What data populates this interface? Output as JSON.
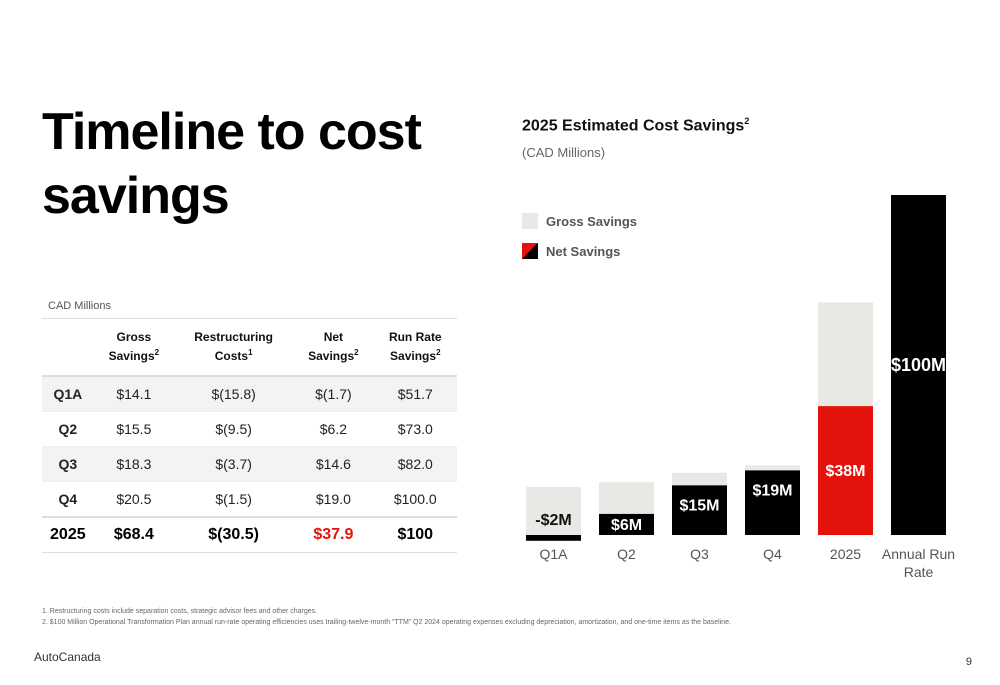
{
  "title_line1": "Timeline to cost",
  "title_line2": "savings",
  "table": {
    "units": "CAD Millions",
    "headers": [
      {
        "line1": "",
        "line2": "",
        "sup": ""
      },
      {
        "line1": "Gross",
        "line2": "Savings",
        "sup": "2"
      },
      {
        "line1": "Restructuring",
        "line2": "Costs",
        "sup": "1"
      },
      {
        "line1": "Net",
        "line2": "Savings",
        "sup": "2"
      },
      {
        "line1": "Run Rate",
        "line2": "Savings",
        "sup": "2"
      }
    ],
    "rows": [
      {
        "label": "Q1A",
        "gross": "$14.1",
        "restructuring": "$(15.8)",
        "net": "$(1.7)",
        "runrate": "$51.7"
      },
      {
        "label": "Q2",
        "gross": "$15.5",
        "restructuring": "$(9.5)",
        "net": "$6.2",
        "runrate": "$73.0"
      },
      {
        "label": "Q3",
        "gross": "$18.3",
        "restructuring": "$(3.7)",
        "net": "$14.6",
        "runrate": "$82.0"
      },
      {
        "label": "Q4",
        "gross": "$20.5",
        "restructuring": "$(1.5)",
        "net": "$19.0",
        "runrate": "$100.0"
      }
    ],
    "total": {
      "label": "2025",
      "gross": "$68.4",
      "restructuring": "$(30.5)",
      "net": "$37.9",
      "runrate": "$100"
    }
  },
  "chart_title": "2025 Estimated Cost Savings",
  "chart_title_sup": "2",
  "chart_subtitle": "(CAD Millions)",
  "legend": {
    "gross": "Gross Savings",
    "net": "Net Savings"
  },
  "chart_data": {
    "type": "bar",
    "categories": [
      "Q1A",
      "Q2",
      "Q3",
      "Q4",
      "2025",
      "Annual Run Rate"
    ],
    "series": [
      {
        "name": "Gross Savings",
        "values": [
          14.1,
          15.5,
          18.3,
          20.5,
          68.4,
          null
        ]
      },
      {
        "name": "Net Savings",
        "values": [
          -1.7,
          6.2,
          14.6,
          19.0,
          37.9,
          100
        ]
      }
    ],
    "data_labels": [
      "-$2M",
      "$6M",
      "$15M",
      "$19M",
      "$38M",
      "$100M"
    ],
    "ylim": [
      -2,
      100
    ],
    "colors": {
      "gross": "#e9e8e4",
      "net": "#000000",
      "net_2025": "#e3120b"
    }
  },
  "footnote1": "1. Restructuring costs include separation costs, strategic advisor fees and other charges.",
  "footnote2": "2. $100 Million Operational Transformation Plan annual run-rate operating efficiencies uses trailing-twelve-month “TTM” Q2 2024 operating expenses excluding depreciation, amortization, and one-time items as the baseline.",
  "brand": "AutoCanada",
  "page_number": "9"
}
